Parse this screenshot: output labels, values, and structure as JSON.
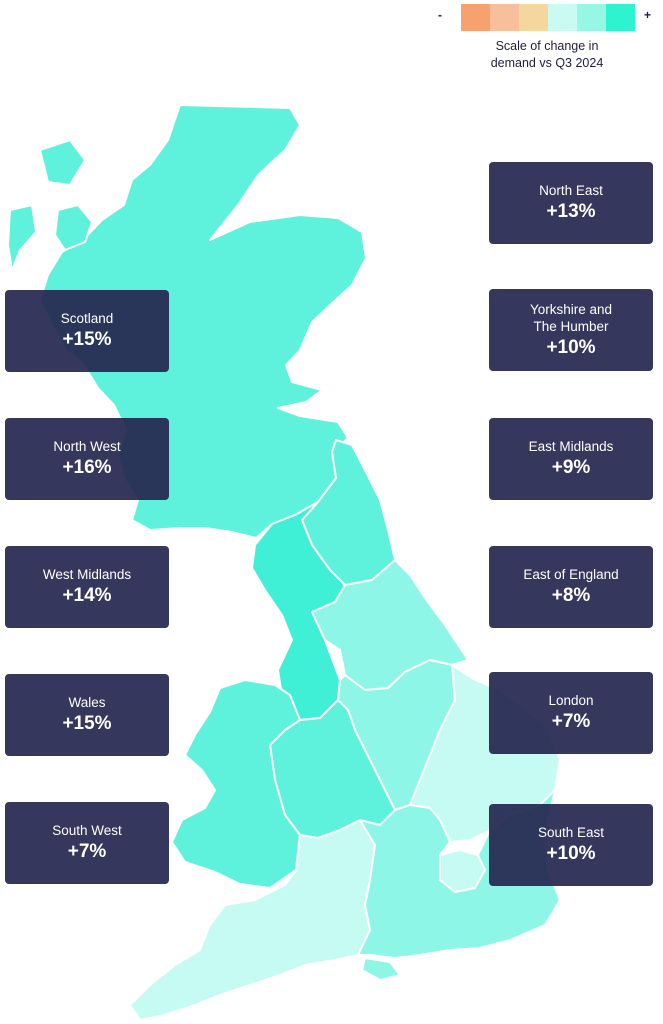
{
  "legend": {
    "minus": "-",
    "plus": "+",
    "caption": "Scale of change in\ndemand vs Q3 2024",
    "scale_colors": [
      "#f7a16e",
      "#f8bf9c",
      "#f4d79c",
      "#c9fbf3",
      "#96f7e5",
      "#2ef3cf"
    ]
  },
  "regions": [
    {
      "name": "North East",
      "value": "+13%",
      "color": "#5ef2dc"
    },
    {
      "name": "Scotland",
      "value": "+15%",
      "color": "#5ef2dc"
    },
    {
      "name": "Yorkshire and\nThe Humber",
      "value": "+10%",
      "color": "#8ef6e6"
    },
    {
      "name": "North West",
      "value": "+16%",
      "color": "#3ff0d6"
    },
    {
      "name": "East Midlands",
      "value": "+9%",
      "color": "#8ef6e6"
    },
    {
      "name": "West Midlands",
      "value": "+14%",
      "color": "#5ef2dc"
    },
    {
      "name": "East of England",
      "value": "+8%",
      "color": "#c6fbf4"
    },
    {
      "name": "Wales",
      "value": "+15%",
      "color": "#5ef2dc"
    },
    {
      "name": "London",
      "value": "+7%",
      "color": "#c6fbf4"
    },
    {
      "name": "South West",
      "value": "+7%",
      "color": "#c6fbf4"
    },
    {
      "name": "South East",
      "value": "+10%",
      "color": "#8ef6e6"
    }
  ],
  "colors": {
    "box_background": "#262850",
    "box_text": "#ffffff",
    "region_border": "#ffffff"
  }
}
